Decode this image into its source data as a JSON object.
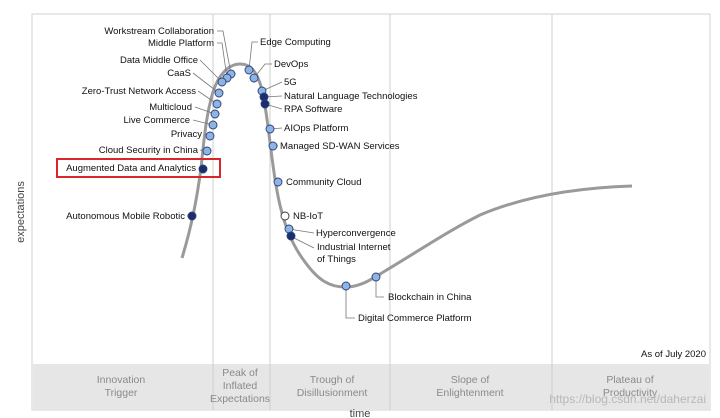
{
  "axes": {
    "y_label": "expectations",
    "x_label": "time"
  },
  "as_of": "As of July 2020",
  "watermark": "https://blog.csdn.net/daherzai",
  "phases": [
    {
      "lines": [
        "Innovation",
        "Trigger"
      ]
    },
    {
      "lines": [
        "Peak of",
        "Inflated",
        "Expectations"
      ]
    },
    {
      "lines": [
        "Trough of",
        "Disillusionment"
      ]
    },
    {
      "lines": [
        "Slope of",
        "Enlightenment"
      ]
    },
    {
      "lines": [
        "Plateau of",
        "Productivity"
      ]
    }
  ],
  "technologies": [
    {
      "name": "Workstream Collaboration",
      "marker": "light"
    },
    {
      "name": "Middle Platform",
      "marker": "light"
    },
    {
      "name": "Data Middle Office",
      "marker": "light"
    },
    {
      "name": "CaaS",
      "marker": "light"
    },
    {
      "name": "Zero-Trust Network Access",
      "marker": "light"
    },
    {
      "name": "Multicloud",
      "marker": "light"
    },
    {
      "name": "Live Commerce",
      "marker": "light"
    },
    {
      "name": "Privacy",
      "marker": "light"
    },
    {
      "name": "Cloud Security in China",
      "marker": "light"
    },
    {
      "name": "Augmented Data and Analytics",
      "marker": "dark",
      "highlight": true
    },
    {
      "name": "Autonomous Mobile Robotic",
      "marker": "dark"
    },
    {
      "name": "Edge Computing",
      "marker": "light"
    },
    {
      "name": "DevOps",
      "marker": "light"
    },
    {
      "name": "5G",
      "marker": "light"
    },
    {
      "name": "Natural Language Technologies",
      "marker": "dark"
    },
    {
      "name": "RPA Software",
      "marker": "dark"
    },
    {
      "name": "AIOps Platform",
      "marker": "light"
    },
    {
      "name": "Managed SD-WAN Services",
      "marker": "light"
    },
    {
      "name": "Community Cloud",
      "marker": "light"
    },
    {
      "name": "NB-IoT",
      "marker": "white"
    },
    {
      "name": "Hyperconvergence",
      "marker": "light"
    },
    {
      "name": "Industrial Internet of Things",
      "lines": [
        "Industrial Internet",
        "of Things"
      ],
      "marker": "dark"
    },
    {
      "name": "Blockchain in China",
      "marker": "light"
    },
    {
      "name": "Digital Commerce Platform",
      "marker": "light"
    }
  ],
  "colors": {
    "light": "#8db4e2",
    "dark": "#1b2f6e",
    "white": "#ffffff",
    "highlight_box": "#d9262b",
    "curve": "#9a9a9a",
    "phase_band": "#e6e6e6",
    "divider": "#cfcfcf"
  }
}
